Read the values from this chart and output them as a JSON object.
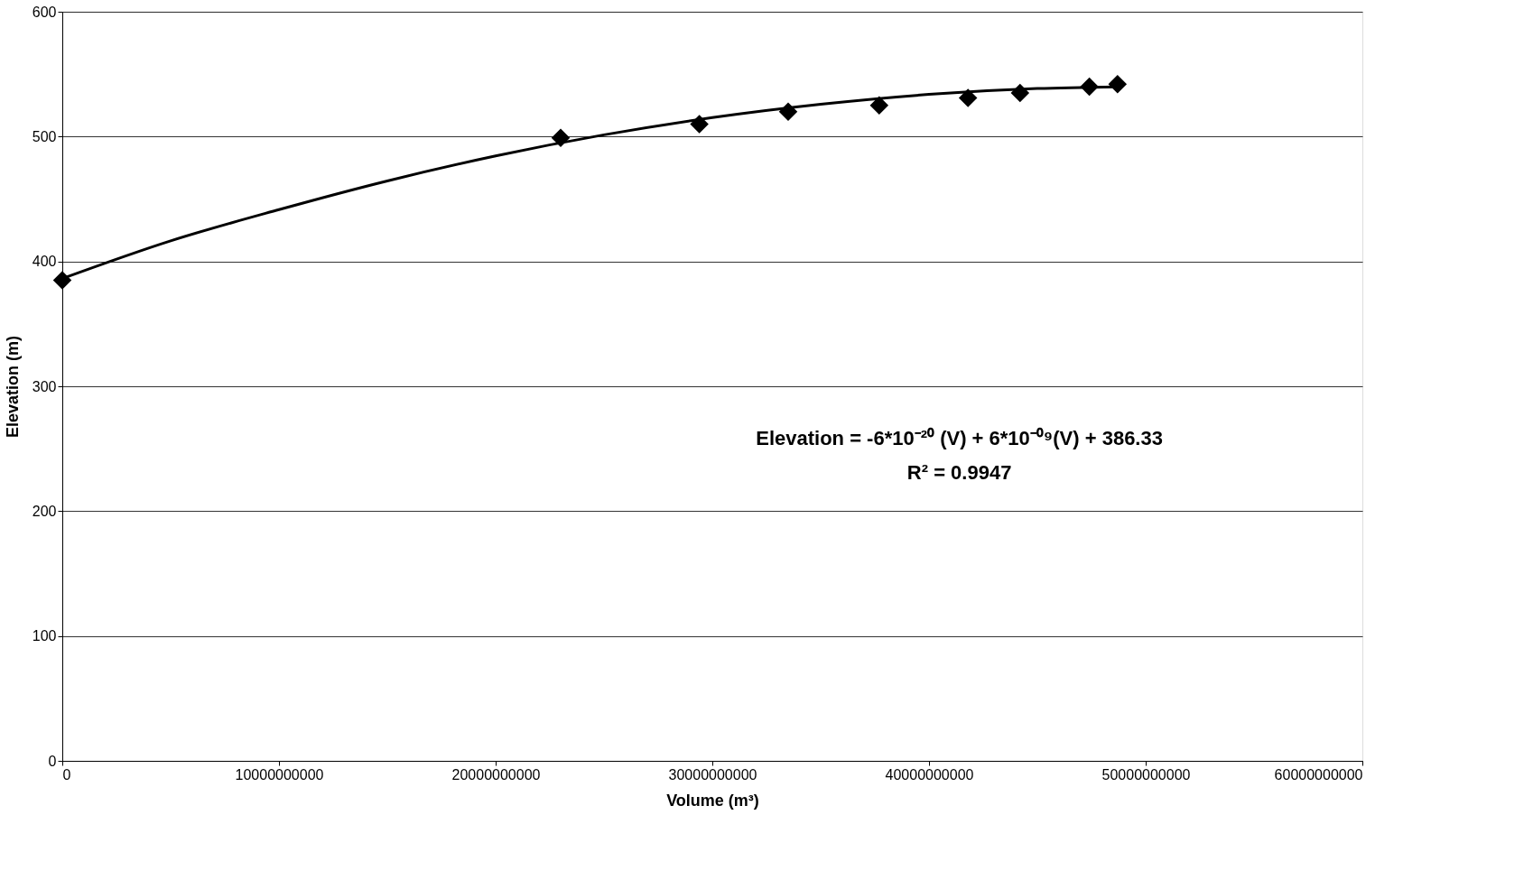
{
  "chart_data": {
    "type": "scatter",
    "xlabel": "Volume (m³)",
    "ylabel": "Elevation (m)",
    "xlim": [
      0,
      60000000000
    ],
    "xticks": [
      0,
      10000000000,
      20000000000,
      30000000000,
      40000000000,
      50000000000,
      60000000000
    ],
    "ylim": [
      0,
      600
    ],
    "yticks": [
      0,
      100,
      200,
      300,
      400,
      500,
      600
    ],
    "grid": "y",
    "series": [
      {
        "color": "#000000",
        "marker": "diamond",
        "x": [
          0,
          23000000000,
          29400000000,
          33500000000,
          37700000000,
          41800000000,
          44200000000,
          47400000000,
          48700000000
        ],
        "values": [
          385,
          499,
          510,
          520,
          525,
          531,
          535,
          540,
          542
        ]
      },
      {
        "type": "line",
        "color": "#000000",
        "line_style": "solid",
        "marker": "none",
        "x": [
          0,
          5000000000,
          10000000000,
          15000000000,
          20000000000,
          25000000000,
          30000000000,
          35000000000,
          40000000000,
          45000000000,
          48700000000
        ],
        "values": [
          386.3,
          416.5,
          441.5,
          464.5,
          484.5,
          501.4,
          515.2,
          525.9,
          533.8,
          538.5,
          539.9
        ]
      }
    ],
    "annotations": [
      "Elevation = -6*10⁻²⁰ (V) + 6*10⁻⁰⁹(V) + 386.33",
      "R² = 0.9947"
    ]
  }
}
